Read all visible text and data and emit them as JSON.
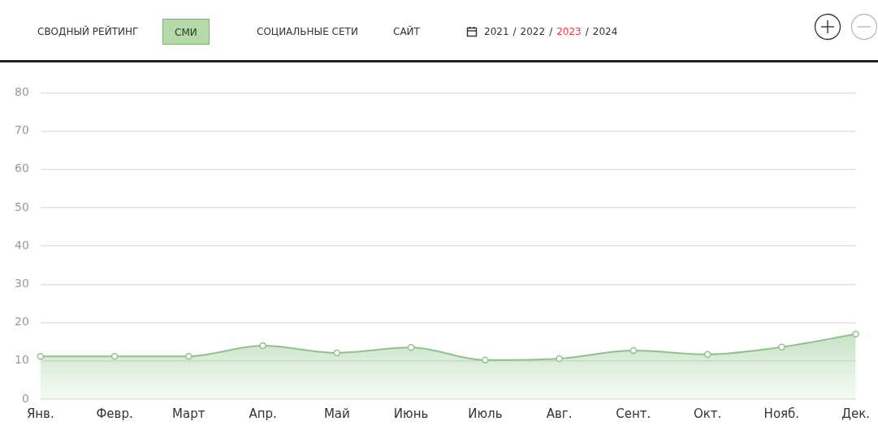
{
  "chart_data": {
    "type": "area",
    "categories": [
      "Янв.",
      "Февр.",
      "Март",
      "Апр.",
      "Май",
      "Июнь",
      "Июль",
      "Авг.",
      "Сент.",
      "Окт.",
      "Нояб.",
      "Дек."
    ],
    "series": [
      {
        "color": "#8cc48a",
        "values": [
          11.2,
          11.2,
          11.2,
          14.0,
          12.1,
          13.5,
          10.2,
          10.6,
          12.7,
          11.7,
          13.6,
          17.0
        ]
      }
    ],
    "ylim": [
      0,
      80
    ],
    "yticks": [
      0,
      10,
      20,
      30,
      40,
      50,
      60,
      70,
      80
    ],
    "grid": "y",
    "legend": false,
    "marker": "circle",
    "annotations": [
      "СВОДНЫЙ РЕЙТИНГ",
      "СМИ",
      "СОЦИАЛЬНЫЕ СЕТИ",
      "САЙТ",
      "2021",
      "/",
      "2022",
      "/",
      "2023",
      "/",
      "2024"
    ]
  }
}
